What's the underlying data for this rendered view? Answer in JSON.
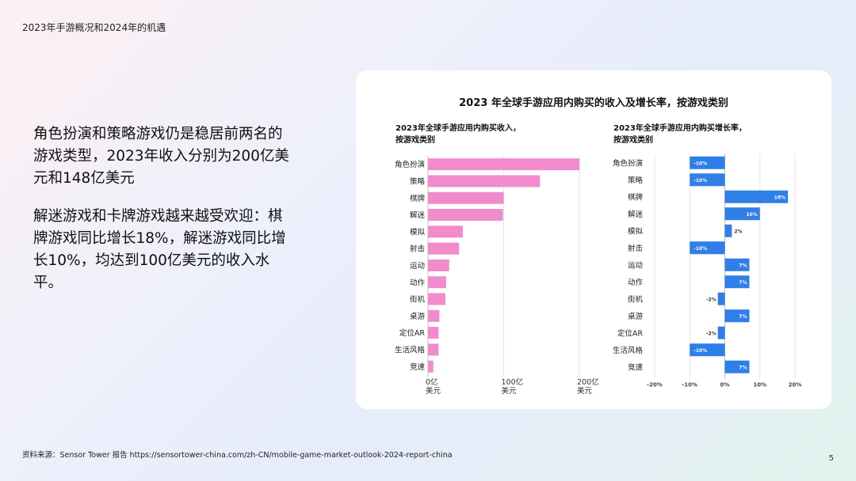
{
  "header": {
    "title": "2023年手游概况和2024年的机遇"
  },
  "body": {
    "para1": "角色扮演和策略游戏仍是稳居前两名的游戏类型，2023年收入分别为200亿美元和148亿美元",
    "para2": "解迷游戏和卡牌游戏越来越受欢迎：棋牌游戏同比增长18%，解迷游戏同比增长10%，均达到100亿美元的收入水平。"
  },
  "card": {
    "title": "2023 年全球手游应用内购买的收入及增长率，按游戏类别"
  },
  "footer": {
    "source": "资料来源：Sensor Tower 报告 https://sensortower-china.com/zh-CN/mobile-game-market-outlook-2024-report-china",
    "page": "5"
  },
  "colors": {
    "revenue_bar": "#f08ccc",
    "growth_bar": "#2f7fe8"
  },
  "chart_data": [
    {
      "type": "bar",
      "orientation": "horizontal",
      "title_line1": "2023年全球手游应用内购买收入，",
      "title_line2": "按游戏类别",
      "categories": [
        "角色扮演",
        "策略",
        "棋牌",
        "解迷",
        "模拟",
        "射击",
        "运动",
        "动作",
        "街机",
        "桌游",
        "定位AR",
        "生活风格",
        "竞速"
      ],
      "values": [
        200,
        148,
        100,
        99,
        46,
        41,
        28,
        24,
        23,
        15,
        14,
        14,
        7
      ],
      "xlim": [
        0,
        200
      ],
      "xticks": [
        {
          "value": 0,
          "line1": "0亿",
          "line2": "美元"
        },
        {
          "value": 100,
          "line1": "100亿",
          "line2": "美元"
        },
        {
          "value": 200,
          "line1": "200亿",
          "line2": "美元"
        }
      ]
    },
    {
      "type": "bar",
      "orientation": "horizontal",
      "title_line1": "2023年全球手游应用内购买增长率，",
      "title_line2": "按游戏类别",
      "categories": [
        "角色扮演",
        "策略",
        "棋牌",
        "解迷",
        "模拟",
        "射击",
        "运动",
        "动作",
        "街机",
        "桌游",
        "定位AR",
        "生活风格",
        "竞速"
      ],
      "values": [
        -10,
        -10,
        18,
        10,
        2,
        -10,
        7,
        7,
        -2,
        7,
        -2,
        -10,
        7
      ],
      "labels": [
        "-10%",
        "-10%",
        "18%",
        "10%",
        "2%",
        "-10%",
        "7%",
        "7%",
        "-2%",
        "7%",
        "-2%",
        "-10%",
        "7%"
      ],
      "xlim": [
        -20,
        20
      ],
      "xticks": [
        {
          "value": -20,
          "label": "-20%"
        },
        {
          "value": -10,
          "label": "-10%"
        },
        {
          "value": 0,
          "label": "0%"
        },
        {
          "value": 10,
          "label": "10%"
        },
        {
          "value": 20,
          "label": "20%"
        }
      ]
    }
  ]
}
